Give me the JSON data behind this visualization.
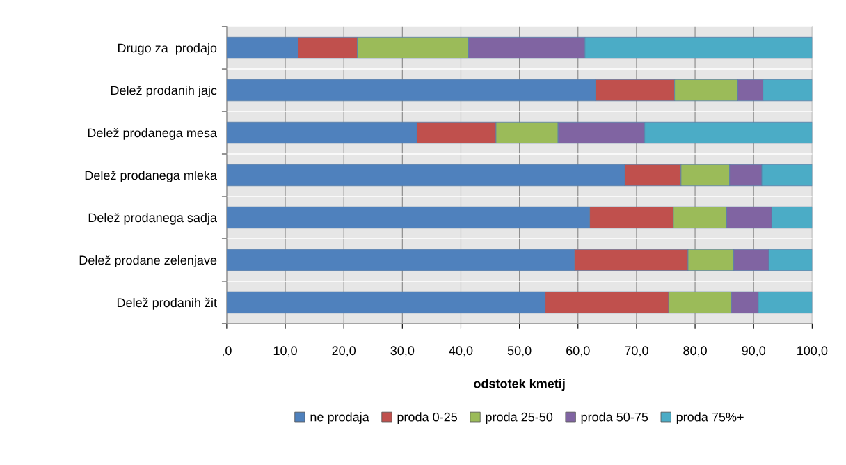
{
  "chart_data": {
    "type": "bar",
    "orientation": "horizontal",
    "stacked": true,
    "xlabel": "odstotek kmetij",
    "categories": [
      "Drugo za  prodajo",
      "Delež prodanih jajc",
      "Delež prodanega mesa",
      "Delež prodanega mleka",
      "Delež prodanega sadja",
      "Delež prodane zelenjave",
      "Delež prodanih žit"
    ],
    "series": [
      {
        "name": "ne prodaja",
        "color": "#4f81bd",
        "values": [
          12.2,
          63.0,
          32.5,
          68.0,
          62.0,
          59.4,
          54.4
        ]
      },
      {
        "name": "proda 0-25",
        "color": "#c0504d",
        "values": [
          10.1,
          13.5,
          13.5,
          9.6,
          14.3,
          19.4,
          21.1
        ]
      },
      {
        "name": "proda 25-50",
        "color": "#9bbb59",
        "values": [
          19.0,
          10.8,
          10.6,
          8.3,
          9.1,
          7.8,
          10.7
        ]
      },
      {
        "name": "proda 50-75",
        "color": "#8064a2",
        "values": [
          19.9,
          4.3,
          14.8,
          5.5,
          7.7,
          6.0,
          4.6
        ]
      },
      {
        "name": "proda 75%+",
        "color": "#4bacc6",
        "values": [
          38.8,
          8.4,
          28.6,
          8.6,
          6.9,
          7.4,
          9.2
        ]
      }
    ],
    "xlim": [
      0,
      100
    ],
    "xticks": [
      {
        "value": 0,
        "label": ",0"
      },
      {
        "value": 10,
        "label": "10,0"
      },
      {
        "value": 20,
        "label": "20,0"
      },
      {
        "value": 30,
        "label": "30,0"
      },
      {
        "value": 40,
        "label": "40,0"
      },
      {
        "value": 50,
        "label": "50,0"
      },
      {
        "value": 60,
        "label": "60,0"
      },
      {
        "value": 70,
        "label": "70,0"
      },
      {
        "value": 80,
        "label": "80,0"
      },
      {
        "value": 90,
        "label": "90,0"
      },
      {
        "value": 100,
        "label": "100,0"
      }
    ],
    "grid": true,
    "legend": "bottom"
  }
}
